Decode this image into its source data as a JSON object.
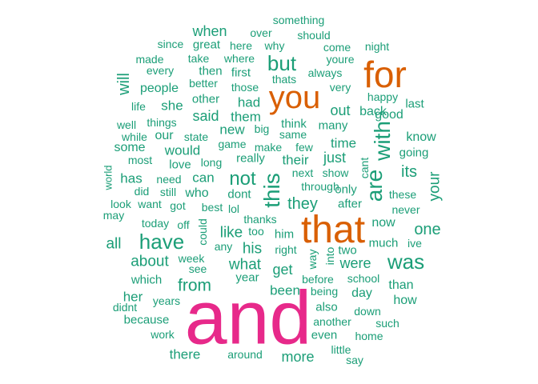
{
  "palette": {
    "green": "#1b9e77",
    "orange": "#d95f02",
    "magenta": "#e7298a"
  },
  "words": [
    {
      "text": "and",
      "weight": 95,
      "color": "magenta",
      "vertical": false
    },
    {
      "text": "that",
      "weight": 48,
      "color": "orange",
      "vertical": false
    },
    {
      "text": "for",
      "weight": 46,
      "color": "orange",
      "vertical": false
    },
    {
      "text": "you",
      "weight": 40,
      "color": "orange",
      "vertical": false
    },
    {
      "text": "this",
      "weight": 28,
      "color": "green",
      "vertical": true
    },
    {
      "text": "are",
      "weight": 28,
      "color": "green",
      "vertical": true
    },
    {
      "text": "with",
      "weight": 28,
      "color": "green",
      "vertical": true
    },
    {
      "text": "was",
      "weight": 26,
      "color": "green",
      "vertical": false
    },
    {
      "text": "have",
      "weight": 26,
      "color": "green",
      "vertical": false
    },
    {
      "text": "but",
      "weight": 26,
      "color": "green",
      "vertical": false
    },
    {
      "text": "not",
      "weight": 24,
      "color": "green",
      "vertical": false
    },
    {
      "text": "they",
      "weight": 20,
      "color": "green",
      "vertical": false
    },
    {
      "text": "from",
      "weight": 21,
      "color": "green",
      "vertical": false
    },
    {
      "text": "will",
      "weight": 20,
      "color": "green",
      "vertical": true
    },
    {
      "text": "one",
      "weight": 20,
      "color": "green",
      "vertical": false
    },
    {
      "text": "its",
      "weight": 20,
      "color": "green",
      "vertical": false
    },
    {
      "text": "your",
      "weight": 19,
      "color": "green",
      "vertical": true
    },
    {
      "text": "what",
      "weight": 19,
      "color": "green",
      "vertical": false
    },
    {
      "text": "his",
      "weight": 19,
      "color": "green",
      "vertical": false
    },
    {
      "text": "like",
      "weight": 19,
      "color": "green",
      "vertical": false
    },
    {
      "text": "about",
      "weight": 19,
      "color": "green",
      "vertical": false
    },
    {
      "text": "all",
      "weight": 19,
      "color": "green",
      "vertical": false
    },
    {
      "text": "when",
      "weight": 18,
      "color": "green",
      "vertical": false
    },
    {
      "text": "said",
      "weight": 18,
      "color": "green",
      "vertical": false
    },
    {
      "text": "out",
      "weight": 18,
      "color": "green",
      "vertical": false
    },
    {
      "text": "just",
      "weight": 18,
      "color": "green",
      "vertical": false
    },
    {
      "text": "more",
      "weight": 18,
      "color": "green",
      "vertical": false
    },
    {
      "text": "get",
      "weight": 18,
      "color": "green",
      "vertical": false
    },
    {
      "text": "were",
      "weight": 18,
      "color": "green",
      "vertical": false
    },
    {
      "text": "she",
      "weight": 17,
      "color": "green",
      "vertical": false
    },
    {
      "text": "had",
      "weight": 17,
      "color": "green",
      "vertical": false
    },
    {
      "text": "been",
      "weight": 17,
      "color": "green",
      "vertical": false
    },
    {
      "text": "would",
      "weight": 17,
      "color": "green",
      "vertical": false
    },
    {
      "text": "can",
      "weight": 17,
      "color": "green",
      "vertical": false
    },
    {
      "text": "time",
      "weight": 17,
      "color": "green",
      "vertical": false
    },
    {
      "text": "there",
      "weight": 17,
      "color": "green",
      "vertical": false
    },
    {
      "text": "has",
      "weight": 17,
      "color": "green",
      "vertical": false
    },
    {
      "text": "her",
      "weight": 17,
      "color": "green",
      "vertical": false
    },
    {
      "text": "their",
      "weight": 17,
      "color": "green",
      "vertical": false
    },
    {
      "text": "new",
      "weight": 17,
      "color": "green",
      "vertical": false
    },
    {
      "text": "them",
      "weight": 17,
      "color": "green",
      "vertical": false
    },
    {
      "text": "people",
      "weight": 16,
      "color": "green",
      "vertical": false
    },
    {
      "text": "good",
      "weight": 16,
      "color": "green",
      "vertical": false
    },
    {
      "text": "who",
      "weight": 16,
      "color": "green",
      "vertical": false
    },
    {
      "text": "some",
      "weight": 16,
      "color": "green",
      "vertical": false
    },
    {
      "text": "back",
      "weight": 16,
      "color": "green",
      "vertical": false
    },
    {
      "text": "know",
      "weight": 16,
      "color": "green",
      "vertical": false
    },
    {
      "text": "than",
      "weight": 16,
      "color": "green",
      "vertical": false
    },
    {
      "text": "how",
      "weight": 16,
      "color": "green",
      "vertical": false
    },
    {
      "text": "day",
      "weight": 16,
      "color": "green",
      "vertical": false
    },
    {
      "text": "now",
      "weight": 16,
      "color": "green",
      "vertical": false
    },
    {
      "text": "other",
      "weight": 15,
      "color": "green",
      "vertical": false
    },
    {
      "text": "think",
      "weight": 15,
      "color": "green",
      "vertical": false
    },
    {
      "text": "dont",
      "weight": 15,
      "color": "green",
      "vertical": false
    },
    {
      "text": "last",
      "weight": 15,
      "color": "green",
      "vertical": false
    },
    {
      "text": "going",
      "weight": 15,
      "color": "green",
      "vertical": false
    },
    {
      "text": "much",
      "weight": 15,
      "color": "green",
      "vertical": false
    },
    {
      "text": "first",
      "weight": 15,
      "color": "green",
      "vertical": false
    },
    {
      "text": "also",
      "weight": 15,
      "color": "green",
      "vertical": false
    },
    {
      "text": "even",
      "weight": 15,
      "color": "green",
      "vertical": false
    },
    {
      "text": "after",
      "weight": 15,
      "color": "green",
      "vertical": false
    },
    {
      "text": "love",
      "weight": 15,
      "color": "green",
      "vertical": false
    },
    {
      "text": "really",
      "weight": 15,
      "color": "green",
      "vertical": false
    },
    {
      "text": "many",
      "weight": 15,
      "color": "green",
      "vertical": false
    },
    {
      "text": "great",
      "weight": 15,
      "color": "green",
      "vertical": false
    },
    {
      "text": "then",
      "weight": 15,
      "color": "green",
      "vertical": false
    },
    {
      "text": "could",
      "weight": 14,
      "color": "green",
      "vertical": true
    },
    {
      "text": "way",
      "weight": 14,
      "color": "green",
      "vertical": true
    },
    {
      "text": "into",
      "weight": 14,
      "color": "green",
      "vertical": true
    },
    {
      "text": "cant",
      "weight": 14,
      "color": "green",
      "vertical": true
    },
    {
      "text": "world",
      "weight": 13,
      "color": "green",
      "vertical": true
    },
    {
      "text": "only",
      "weight": 15,
      "color": "green",
      "vertical": false
    },
    {
      "text": "two",
      "weight": 15,
      "color": "green",
      "vertical": false
    },
    {
      "text": "which",
      "weight": 15,
      "color": "green",
      "vertical": false
    },
    {
      "text": "year",
      "weight": 15,
      "color": "green",
      "vertical": false
    },
    {
      "text": "because",
      "weight": 15,
      "color": "green",
      "vertical": false
    },
    {
      "text": "him",
      "weight": 15,
      "color": "green",
      "vertical": false
    },
    {
      "text": "these",
      "weight": 14,
      "color": "green",
      "vertical": false
    },
    {
      "text": "make",
      "weight": 14,
      "color": "green",
      "vertical": false
    },
    {
      "text": "over",
      "weight": 14,
      "color": "green",
      "vertical": false
    },
    {
      "text": "where",
      "weight": 14,
      "color": "green",
      "vertical": false
    },
    {
      "text": "take",
      "weight": 14,
      "color": "green",
      "vertical": false
    },
    {
      "text": "made",
      "weight": 14,
      "color": "green",
      "vertical": false
    },
    {
      "text": "come",
      "weight": 14,
      "color": "green",
      "vertical": false
    },
    {
      "text": "should",
      "weight": 14,
      "color": "green",
      "vertical": false
    },
    {
      "text": "something",
      "weight": 14,
      "color": "green",
      "vertical": false
    },
    {
      "text": "here",
      "weight": 14,
      "color": "green",
      "vertical": false
    },
    {
      "text": "why",
      "weight": 14,
      "color": "green",
      "vertical": false
    },
    {
      "text": "since",
      "weight": 14,
      "color": "green",
      "vertical": false
    },
    {
      "text": "night",
      "weight": 14,
      "color": "green",
      "vertical": false
    },
    {
      "text": "youre",
      "weight": 14,
      "color": "green",
      "vertical": false
    },
    {
      "text": "every",
      "weight": 14,
      "color": "green",
      "vertical": false
    },
    {
      "text": "thats",
      "weight": 14,
      "color": "green",
      "vertical": false
    },
    {
      "text": "always",
      "weight": 14,
      "color": "green",
      "vertical": false
    },
    {
      "text": "very",
      "weight": 14,
      "color": "green",
      "vertical": false
    },
    {
      "text": "better",
      "weight": 14,
      "color": "green",
      "vertical": false
    },
    {
      "text": "those",
      "weight": 14,
      "color": "green",
      "vertical": false
    },
    {
      "text": "happy",
      "weight": 14,
      "color": "green",
      "vertical": false
    },
    {
      "text": "life",
      "weight": 14,
      "color": "green",
      "vertical": false
    },
    {
      "text": "things",
      "weight": 14,
      "color": "green",
      "vertical": false
    },
    {
      "text": "well",
      "weight": 14,
      "color": "green",
      "vertical": false
    },
    {
      "text": "big",
      "weight": 14,
      "color": "green",
      "vertical": false
    },
    {
      "text": "same",
      "weight": 14,
      "color": "green",
      "vertical": false
    },
    {
      "text": "while",
      "weight": 14,
      "color": "green",
      "vertical": false
    },
    {
      "text": "our",
      "weight": 16,
      "color": "green",
      "vertical": false
    },
    {
      "text": "state",
      "weight": 14,
      "color": "green",
      "vertical": false
    },
    {
      "text": "game",
      "weight": 14,
      "color": "green",
      "vertical": false
    },
    {
      "text": "few",
      "weight": 14,
      "color": "green",
      "vertical": false
    },
    {
      "text": "most",
      "weight": 14,
      "color": "green",
      "vertical": false
    },
    {
      "text": "long",
      "weight": 14,
      "color": "green",
      "vertical": false
    },
    {
      "text": "next",
      "weight": 14,
      "color": "green",
      "vertical": false
    },
    {
      "text": "show",
      "weight": 14,
      "color": "green",
      "vertical": false
    },
    {
      "text": "need",
      "weight": 14,
      "color": "green",
      "vertical": false
    },
    {
      "text": "through",
      "weight": 14,
      "color": "green",
      "vertical": false
    },
    {
      "text": "did",
      "weight": 14,
      "color": "green",
      "vertical": false
    },
    {
      "text": "still",
      "weight": 14,
      "color": "green",
      "vertical": false
    },
    {
      "text": "look",
      "weight": 14,
      "color": "green",
      "vertical": false
    },
    {
      "text": "want",
      "weight": 14,
      "color": "green",
      "vertical": false
    },
    {
      "text": "got",
      "weight": 14,
      "color": "green",
      "vertical": false
    },
    {
      "text": "best",
      "weight": 14,
      "color": "green",
      "vertical": false
    },
    {
      "text": "lol",
      "weight": 14,
      "color": "green",
      "vertical": false
    },
    {
      "text": "never",
      "weight": 14,
      "color": "green",
      "vertical": false
    },
    {
      "text": "may",
      "weight": 14,
      "color": "green",
      "vertical": false
    },
    {
      "text": "today",
      "weight": 14,
      "color": "green",
      "vertical": false
    },
    {
      "text": "off",
      "weight": 14,
      "color": "green",
      "vertical": false
    },
    {
      "text": "thanks",
      "weight": 14,
      "color": "green",
      "vertical": false
    },
    {
      "text": "too",
      "weight": 14,
      "color": "green",
      "vertical": false
    },
    {
      "text": "any",
      "weight": 14,
      "color": "green",
      "vertical": false
    },
    {
      "text": "right",
      "weight": 14,
      "color": "green",
      "vertical": false
    },
    {
      "text": "ive",
      "weight": 14,
      "color": "green",
      "vertical": false
    },
    {
      "text": "week",
      "weight": 14,
      "color": "green",
      "vertical": false
    },
    {
      "text": "see",
      "weight": 14,
      "color": "green",
      "vertical": false
    },
    {
      "text": "before",
      "weight": 14,
      "color": "green",
      "vertical": false
    },
    {
      "text": "school",
      "weight": 14,
      "color": "green",
      "vertical": false
    },
    {
      "text": "being",
      "weight": 14,
      "color": "green",
      "vertical": false
    },
    {
      "text": "years",
      "weight": 14,
      "color": "green",
      "vertical": false
    },
    {
      "text": "didnt",
      "weight": 14,
      "color": "green",
      "vertical": false
    },
    {
      "text": "down",
      "weight": 14,
      "color": "green",
      "vertical": false
    },
    {
      "text": "another",
      "weight": 14,
      "color": "green",
      "vertical": false
    },
    {
      "text": "such",
      "weight": 14,
      "color": "green",
      "vertical": false
    },
    {
      "text": "work",
      "weight": 14,
      "color": "green",
      "vertical": false
    },
    {
      "text": "home",
      "weight": 14,
      "color": "green",
      "vertical": false
    },
    {
      "text": "little",
      "weight": 14,
      "color": "green",
      "vertical": false
    },
    {
      "text": "around",
      "weight": 14,
      "color": "green",
      "vertical": false
    },
    {
      "text": "say",
      "weight": 14,
      "color": "green",
      "vertical": false
    }
  ]
}
